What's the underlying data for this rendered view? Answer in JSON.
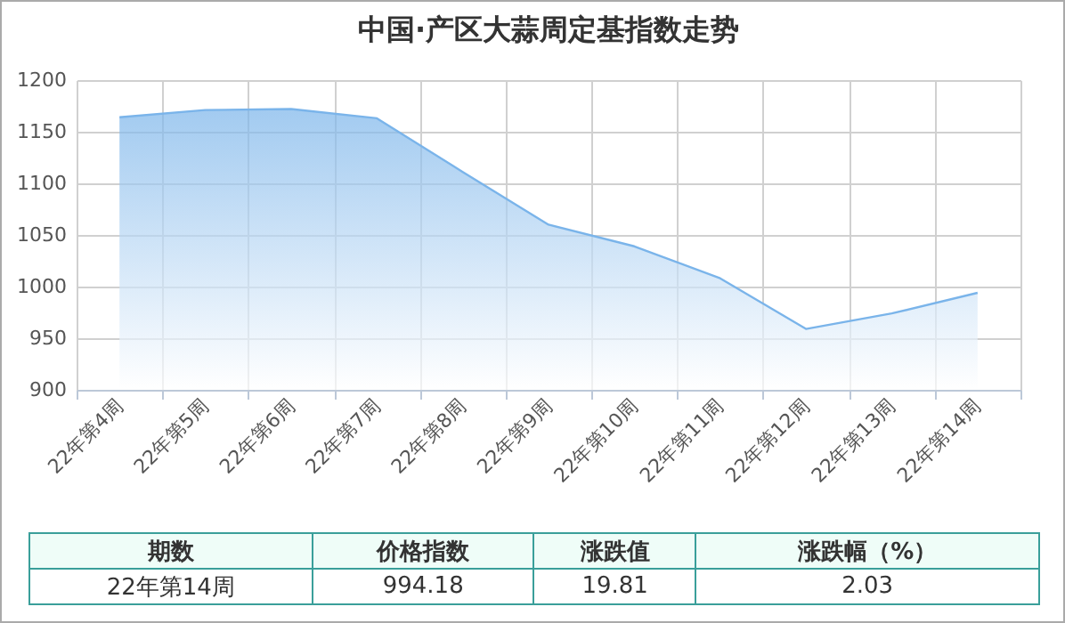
{
  "chart_data": {
    "type": "area",
    "title": "中国·产区大蒜周定基指数走势",
    "categories": [
      "22年第4周",
      "22年第5周",
      "22年第6周",
      "22年第7周",
      "22年第8周",
      "22年第9周",
      "22年第10周",
      "22年第11周",
      "22年第12周",
      "22年第13周",
      "22年第14周"
    ],
    "values": [
      1164,
      1171,
      1172,
      1163,
      1111,
      1060,
      1039,
      1008,
      959,
      974,
      994
    ],
    "color": "#7ab4ea",
    "ylim": [
      900,
      1200
    ],
    "yticks": [
      900,
      950,
      1000,
      1050,
      1100,
      1150,
      1200
    ],
    "grid": true,
    "annotations": [
      "期数",
      "价格指数",
      "涨跌值",
      "涨跌幅（%）",
      "22年第14周",
      "994.18",
      "19.81",
      "2.03"
    ]
  }
}
